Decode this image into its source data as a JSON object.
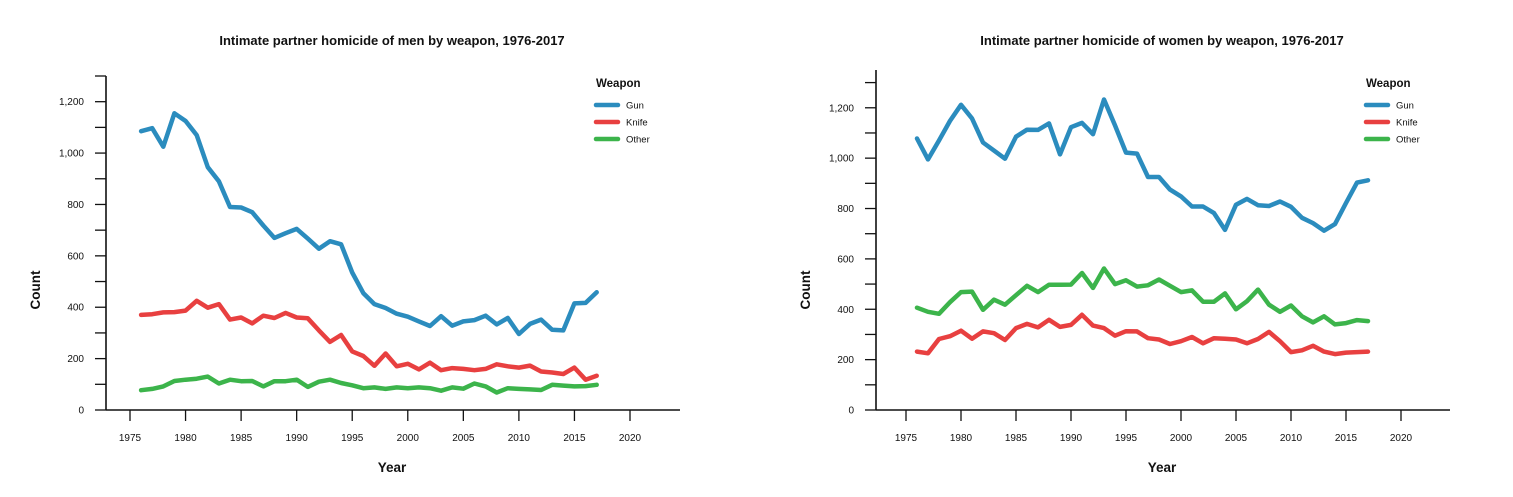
{
  "colors": {
    "gun": "#2b8cbe",
    "knife": "#e84040",
    "other": "#3cb44b"
  },
  "chart_data": [
    {
      "type": "line",
      "title": "Intimate partner homicide of men by weapon, 1976-2017",
      "xlabel": "Year",
      "ylabel": "Count",
      "xlim": [
        1972,
        2024
      ],
      "ylim": [
        0,
        1300
      ],
      "xticks": [
        1975,
        1980,
        1985,
        1990,
        1995,
        2000,
        2005,
        2010,
        2015,
        2020
      ],
      "xtick_labels": [
        "1975",
        "1980",
        "1985",
        "1990",
        "1995",
        "2000",
        "2005",
        "2010",
        "2015",
        "2020"
      ],
      "yticks": [
        0,
        100,
        200,
        300,
        400,
        500,
        600,
        700,
        800,
        900,
        1000,
        1100,
        1200,
        1300
      ],
      "ytick_labels": [
        "0",
        "",
        "200",
        "",
        "400",
        "",
        "600",
        "",
        "800",
        "",
        "1,000",
        "",
        "1,200",
        ""
      ],
      "legend": {
        "title": "Weapon",
        "position": "top-right"
      },
      "x": [
        1976,
        1977,
        1978,
        1979,
        1980,
        1981,
        1982,
        1983,
        1984,
        1985,
        1986,
        1987,
        1988,
        1989,
        1990,
        1991,
        1992,
        1993,
        1994,
        1995,
        1996,
        1997,
        1998,
        1999,
        2000,
        2001,
        2002,
        2003,
        2004,
        2005,
        2006,
        2007,
        2008,
        2009,
        2010,
        2011,
        2012,
        2013,
        2014,
        2015,
        2016,
        2017
      ],
      "series": [
        {
          "name": "Gun",
          "color_key": "gun",
          "values": [
            1085,
            1097,
            1025,
            1155,
            1125,
            1070,
            945,
            890,
            790,
            788,
            770,
            718,
            670,
            688,
            705,
            667,
            628,
            657,
            645,
            535,
            455,
            412,
            397,
            375,
            363,
            345,
            327,
            365,
            328,
            345,
            350,
            367,
            333,
            358,
            296,
            335,
            352,
            312,
            310,
            415,
            417,
            458
          ]
        },
        {
          "name": "Knife",
          "color_key": "knife",
          "values": [
            370,
            373,
            380,
            381,
            387,
            425,
            398,
            412,
            352,
            360,
            337,
            367,
            358,
            378,
            360,
            357,
            310,
            265,
            292,
            228,
            210,
            172,
            220,
            170,
            180,
            158,
            184,
            155,
            163,
            160,
            155,
            160,
            178,
            170,
            165,
            173,
            150,
            146,
            140,
            165,
            118,
            133
          ]
        },
        {
          "name": "Other",
          "color_key": "other",
          "values": [
            77,
            82,
            92,
            113,
            118,
            122,
            130,
            103,
            118,
            112,
            113,
            92,
            112,
            112,
            118,
            90,
            110,
            118,
            105,
            96,
            85,
            88,
            82,
            88,
            85,
            88,
            85,
            75,
            88,
            83,
            103,
            92,
            68,
            85,
            82,
            80,
            78,
            98,
            95,
            92,
            93,
            98
          ]
        }
      ]
    },
    {
      "type": "line",
      "title": "Intimate partner homicide of women by weapon, 1976-2017",
      "xlabel": "Year",
      "ylabel": "Count",
      "xlim": [
        1972,
        2024
      ],
      "ylim": [
        0,
        1350
      ],
      "xticks": [
        1975,
        1980,
        1985,
        1990,
        1995,
        2000,
        2005,
        2010,
        2015,
        2020
      ],
      "xtick_labels": [
        "1975",
        "1980",
        "1985",
        "1990",
        "1995",
        "2000",
        "2005",
        "2010",
        "2015",
        "2020"
      ],
      "yticks": [
        0,
        100,
        200,
        300,
        400,
        500,
        600,
        700,
        800,
        900,
        1000,
        1100,
        1200,
        1300
      ],
      "ytick_labels": [
        "0",
        "",
        "200",
        "",
        "400",
        "",
        "600",
        "",
        "800",
        "",
        "1,000",
        "",
        "1,200",
        ""
      ],
      "legend": {
        "title": "Weapon",
        "position": "top-right"
      },
      "x": [
        1976,
        1977,
        1978,
        1979,
        1980,
        1981,
        1982,
        1983,
        1984,
        1985,
        1986,
        1987,
        1988,
        1989,
        1990,
        1991,
        1992,
        1993,
        1994,
        1995,
        1996,
        1997,
        1998,
        1999,
        2000,
        2001,
        2002,
        2003,
        2004,
        2005,
        2006,
        2007,
        2008,
        2009,
        2010,
        2011,
        2012,
        2013,
        2014,
        2015,
        2016,
        2017
      ],
      "series": [
        {
          "name": "Gun",
          "color_key": "gun",
          "values": [
            1078,
            995,
            1070,
            1148,
            1212,
            1158,
            1062,
            1030,
            998,
            1085,
            1113,
            1112,
            1138,
            1015,
            1123,
            1140,
            1095,
            1233,
            1130,
            1022,
            1018,
            925,
            925,
            875,
            848,
            808,
            808,
            782,
            715,
            815,
            838,
            813,
            810,
            828,
            807,
            763,
            742,
            712,
            738,
            822,
            903,
            912
          ]
        },
        {
          "name": "Knife",
          "color_key": "knife",
          "values": [
            232,
            225,
            282,
            293,
            315,
            283,
            312,
            305,
            278,
            325,
            342,
            328,
            358,
            330,
            338,
            378,
            335,
            325,
            295,
            313,
            312,
            285,
            280,
            262,
            273,
            290,
            265,
            285,
            283,
            280,
            265,
            282,
            310,
            273,
            230,
            237,
            255,
            232,
            222,
            228,
            230,
            232
          ]
        },
        {
          "name": "Other",
          "color_key": "other",
          "values": [
            406,
            390,
            382,
            428,
            468,
            470,
            398,
            438,
            418,
            456,
            493,
            468,
            497,
            497,
            498,
            544,
            485,
            562,
            500,
            515,
            490,
            495,
            518,
            493,
            468,
            475,
            430,
            430,
            463,
            400,
            432,
            478,
            418,
            390,
            415,
            372,
            348,
            372,
            340,
            345,
            357,
            353
          ]
        }
      ]
    }
  ]
}
